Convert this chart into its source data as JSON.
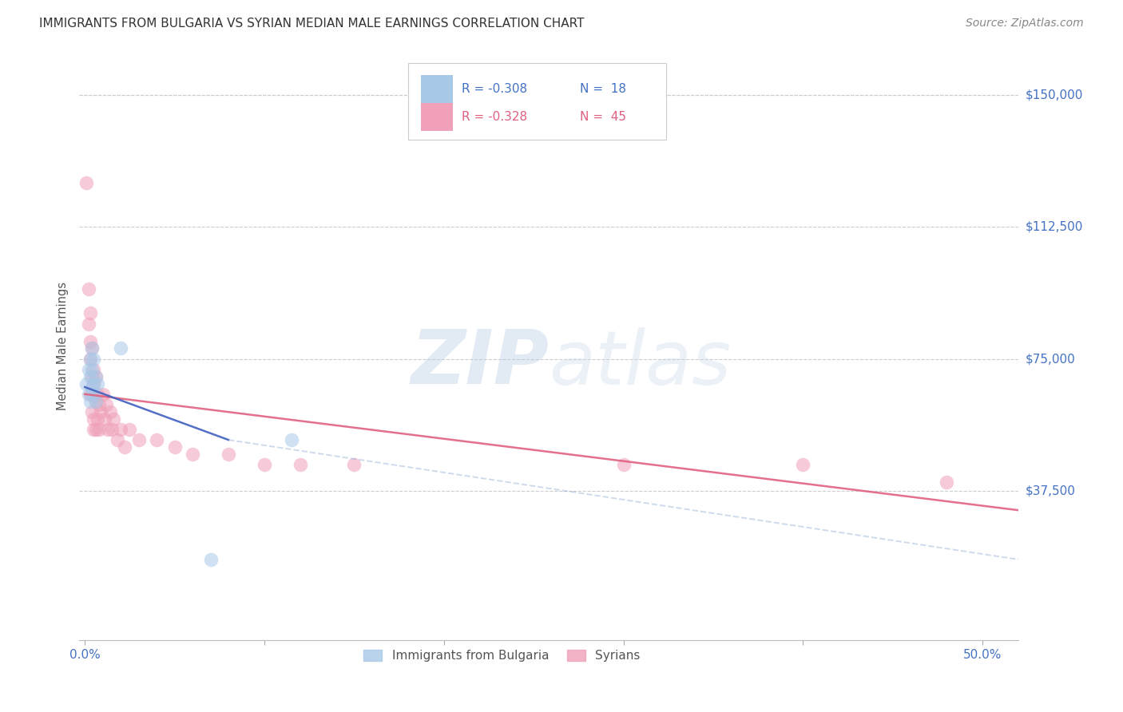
{
  "title": "IMMIGRANTS FROM BULGARIA VS SYRIAN MEDIAN MALE EARNINGS CORRELATION CHART",
  "source": "Source: ZipAtlas.com",
  "ylabel": "Median Male Earnings",
  "xtick_labels": [
    "0.0%",
    "",
    "",
    "",
    "",
    "50.0%"
  ],
  "xtick_vals": [
    0.0,
    0.1,
    0.2,
    0.3,
    0.4,
    0.5
  ],
  "ytick_labels": [
    "$37,500",
    "$75,000",
    "$112,500",
    "$150,000"
  ],
  "ytick_vals": [
    37500,
    75000,
    112500,
    150000
  ],
  "ylim": [
    -5000,
    162500
  ],
  "xlim": [
    -0.003,
    0.52
  ],
  "bg_color": "#ffffff",
  "grid_color": "#cccccc",
  "watermark_zip": "ZIP",
  "watermark_atlas": "atlas",
  "blue_color": "#a8c8e8",
  "pink_color": "#f0a0b8",
  "blue_line_color": "#4060c0",
  "blue_dashed_color": "#90b0d8",
  "pink_line_color": "#e06080",
  "axis_color": "#555555",
  "tick_label_color": "#4472c4",
  "title_color": "#333333",
  "source_color": "#888888",
  "bulgaria_scatter": [
    [
      0.001,
      68000
    ],
    [
      0.002,
      72000
    ],
    [
      0.002,
      65000
    ],
    [
      0.003,
      75000
    ],
    [
      0.003,
      70000
    ],
    [
      0.003,
      63000
    ],
    [
      0.004,
      78000
    ],
    [
      0.004,
      67000
    ],
    [
      0.004,
      72000
    ],
    [
      0.005,
      68000
    ],
    [
      0.005,
      65000
    ],
    [
      0.005,
      75000
    ],
    [
      0.006,
      70000
    ],
    [
      0.006,
      63000
    ],
    [
      0.007,
      68000
    ],
    [
      0.02,
      78000
    ],
    [
      0.07,
      18000
    ],
    [
      0.115,
      52000
    ]
  ],
  "syrian_scatter": [
    [
      0.001,
      125000
    ],
    [
      0.002,
      95000
    ],
    [
      0.002,
      85000
    ],
    [
      0.003,
      88000
    ],
    [
      0.003,
      80000
    ],
    [
      0.003,
      75000
    ],
    [
      0.003,
      65000
    ],
    [
      0.004,
      78000
    ],
    [
      0.004,
      70000
    ],
    [
      0.004,
      65000
    ],
    [
      0.004,
      60000
    ],
    [
      0.005,
      72000
    ],
    [
      0.005,
      68000
    ],
    [
      0.005,
      58000
    ],
    [
      0.005,
      55000
    ],
    [
      0.006,
      70000
    ],
    [
      0.006,
      63000
    ],
    [
      0.006,
      55000
    ],
    [
      0.007,
      65000
    ],
    [
      0.007,
      58000
    ],
    [
      0.008,
      62000
    ],
    [
      0.008,
      55000
    ],
    [
      0.009,
      60000
    ],
    [
      0.01,
      65000
    ],
    [
      0.011,
      58000
    ],
    [
      0.012,
      62000
    ],
    [
      0.013,
      55000
    ],
    [
      0.014,
      60000
    ],
    [
      0.015,
      55000
    ],
    [
      0.016,
      58000
    ],
    [
      0.018,
      52000
    ],
    [
      0.02,
      55000
    ],
    [
      0.022,
      50000
    ],
    [
      0.025,
      55000
    ],
    [
      0.03,
      52000
    ],
    [
      0.04,
      52000
    ],
    [
      0.05,
      50000
    ],
    [
      0.06,
      48000
    ],
    [
      0.08,
      48000
    ],
    [
      0.1,
      45000
    ],
    [
      0.12,
      45000
    ],
    [
      0.15,
      45000
    ],
    [
      0.3,
      45000
    ],
    [
      0.4,
      45000
    ],
    [
      0.48,
      40000
    ]
  ],
  "bulgaria_line_solid": [
    [
      0.0,
      67000
    ],
    [
      0.08,
      52000
    ]
  ],
  "bulgaria_line_dashed": [
    [
      0.08,
      52000
    ],
    [
      0.52,
      18000
    ]
  ],
  "syrian_line": [
    [
      0.0,
      65000
    ],
    [
      0.52,
      32000
    ]
  ],
  "scatter_size": 160,
  "scatter_alpha": 0.55,
  "line_width": 1.8,
  "dashed_alpha": 0.45,
  "legend_r1": "R = -0.308",
  "legend_n1": "N =  18",
  "legend_r2": "R = -0.328",
  "legend_n2": "N =  45",
  "legend_bottom_labels": [
    "Immigrants from Bulgaria",
    "Syrians"
  ],
  "legend_bottom_colors": [
    "#a8c8e8",
    "#f0a0b8"
  ]
}
